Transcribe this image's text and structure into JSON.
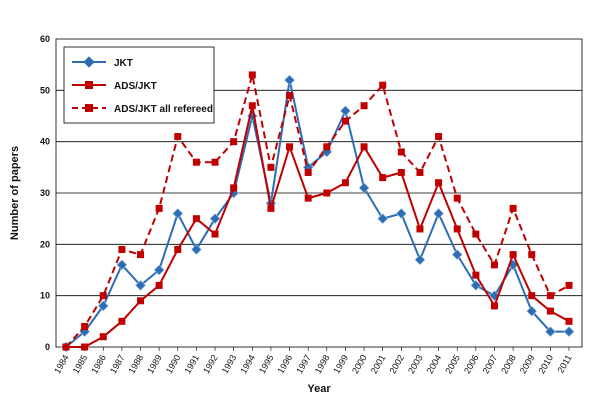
{
  "chart_data": {
    "type": "line",
    "xlabel": "Year",
    "ylabel": "Number of papers",
    "ylim": [
      0,
      60
    ],
    "y_ticks": [
      0,
      10,
      20,
      30,
      40,
      50,
      60
    ],
    "grid": "horizontal",
    "legend_position": "top-left",
    "categories": [
      "1984",
      "1985",
      "1986",
      "1987",
      "1988",
      "1989",
      "1990",
      "1991",
      "1992",
      "1993",
      "1994",
      "1995",
      "1996",
      "1997",
      "1998",
      "1999",
      "2000",
      "2001",
      "2002",
      "2003",
      "2004",
      "2005",
      "2006",
      "2007",
      "2008",
      "2009",
      "2010",
      "2011"
    ],
    "series": [
      {
        "name": "JKT",
        "color": "#2e6db4",
        "marker": "diamond",
        "line_style": "solid",
        "values": [
          0,
          3,
          8,
          16,
          12,
          15,
          26,
          19,
          25,
          30,
          45,
          28,
          52,
          35,
          38,
          46,
          31,
          25,
          26,
          17,
          26,
          18,
          12,
          10,
          16,
          7,
          3,
          3
        ]
      },
      {
        "name": "ADS/JKT",
        "color": "#c00000",
        "marker": "square",
        "line_style": "solid",
        "values": [
          0,
          0,
          2,
          5,
          9,
          12,
          19,
          25,
          22,
          31,
          47,
          27,
          39,
          29,
          30,
          32,
          39,
          33,
          34,
          23,
          32,
          23,
          14,
          8,
          18,
          10,
          7,
          5
        ]
      },
      {
        "name": "ADS/JKT all refereed",
        "color": "#c00000",
        "marker": "square",
        "line_style": "dashed",
        "values": [
          0,
          4,
          10,
          19,
          18,
          27,
          41,
          36,
          36,
          40,
          53,
          35,
          49,
          34,
          39,
          44,
          47,
          51,
          38,
          34,
          41,
          29,
          22,
          16,
          27,
          18,
          10,
          12
        ]
      }
    ]
  }
}
